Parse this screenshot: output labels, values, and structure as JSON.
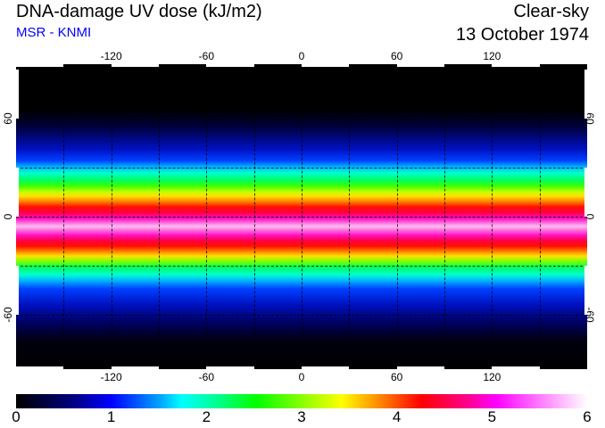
{
  "header": {
    "title": "DNA-damage UV dose (kJ/m2)",
    "subtitle": "MSR - KNMI",
    "condition": "Clear-sky",
    "date": "13 October 1974"
  },
  "map": {
    "lon_ticks": [
      "-120",
      "-60",
      "0",
      "60",
      "120"
    ],
    "lat_ticks": [
      "60",
      "0",
      "-60"
    ],
    "lon_values": [
      -120,
      -60,
      0,
      60,
      120
    ],
    "lat_values": [
      60,
      0,
      -60
    ]
  },
  "colorbar": {
    "labels": [
      "0",
      "1",
      "2",
      "3",
      "4",
      "5",
      "6"
    ],
    "min": 0,
    "max": 6,
    "colors": [
      "#000000",
      "#0000ff",
      "#00ffff",
      "#00ff00",
      "#ffff00",
      "#ff0000",
      "#ff00ff",
      "#ffffff"
    ]
  }
}
